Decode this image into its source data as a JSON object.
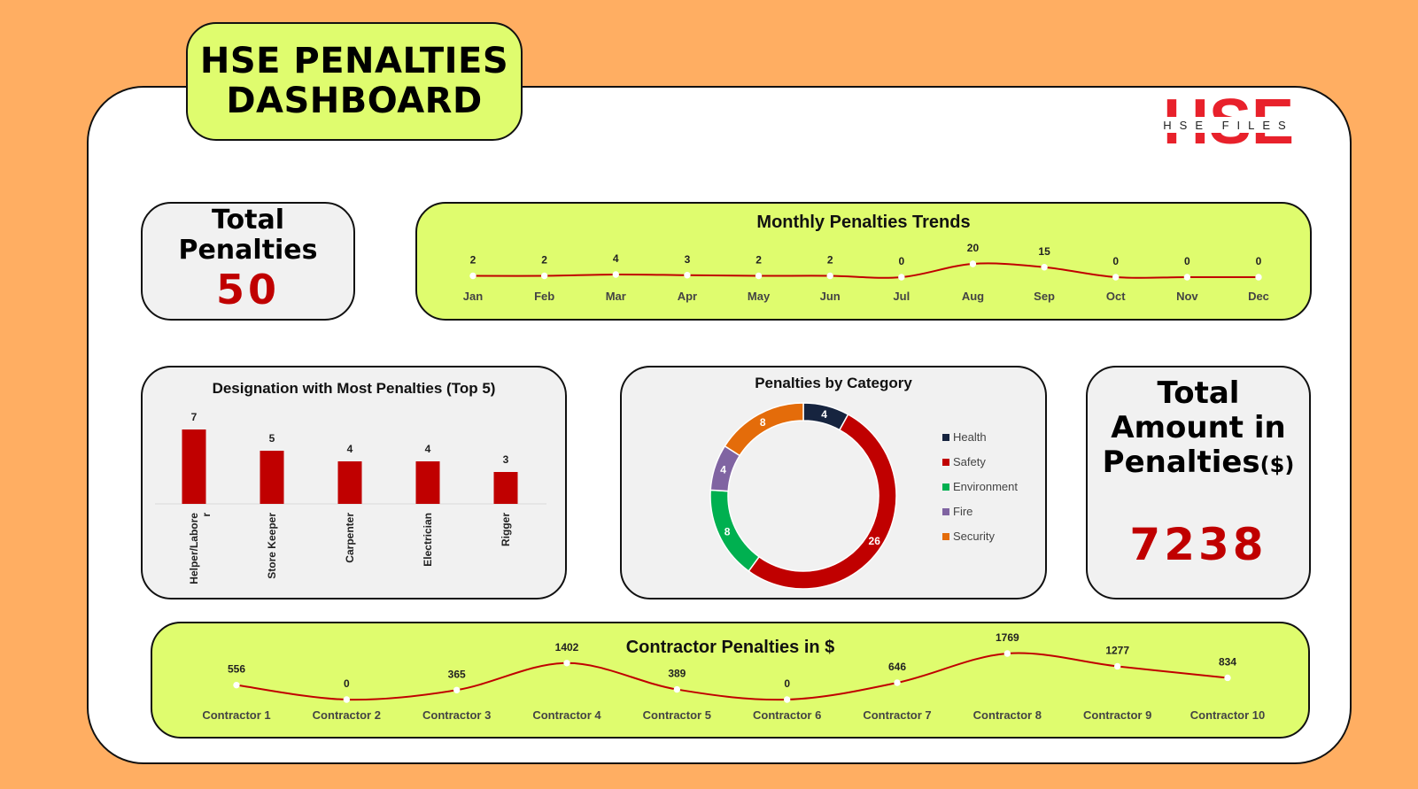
{
  "dashboard": {
    "title": "HSE PENALTIES\nDASHBOARD",
    "logo": {
      "main": "HSE",
      "sub": "HSE FILES"
    }
  },
  "total_penalties": {
    "label": "Total\nPenalties",
    "value": "50"
  },
  "total_amount": {
    "label": "Total\nAmount in\nPenalties",
    "unit": "($)",
    "value": "7238"
  },
  "colors": {
    "background": "#FFAE62",
    "panel_lime": "#DFFC6E",
    "accent_red": "#C00000",
    "health": "#16243F",
    "safety": "#C00000",
    "environment": "#00B050",
    "fire": "#8064A2",
    "security": "#E46C0A"
  },
  "chart_data": [
    {
      "id": "monthly",
      "type": "line",
      "title": "Monthly Penalties Trends",
      "categories": [
        "Jan",
        "Feb",
        "Mar",
        "Apr",
        "May",
        "Jun",
        "Jul",
        "Aug",
        "Sep",
        "Oct",
        "Nov",
        "Dec"
      ],
      "values": [
        2,
        2,
        4,
        3,
        2,
        2,
        0,
        20,
        15,
        0,
        0,
        0
      ],
      "ylim": [
        0,
        200
      ]
    },
    {
      "id": "designation",
      "type": "bar",
      "title": "Designation with Most Penalties (Top 5)",
      "categories": [
        "Helper/Labore\nr",
        "Store Keeper",
        "Carpenter",
        "Electrician",
        "Rigger"
      ],
      "values": [
        7,
        5,
        4,
        4,
        3
      ],
      "ylim": [
        0,
        8
      ]
    },
    {
      "id": "category",
      "type": "pie",
      "title": "Penalties by Category",
      "labels": [
        "Health",
        "Safety",
        "Environment",
        "Fire",
        "Security"
      ],
      "values": [
        4,
        26,
        8,
        4,
        8
      ],
      "colors": [
        "#16243F",
        "#C00000",
        "#00B050",
        "#8064A2",
        "#E46C0A"
      ],
      "legend": "right"
    },
    {
      "id": "contractor",
      "type": "line",
      "title": "Contractor Penalties in $",
      "categories": [
        "Contractor 1",
        "Contractor 2",
        "Contractor 3",
        "Contractor 4",
        "Contractor 5",
        "Contractor 6",
        "Contractor 7",
        "Contractor 8",
        "Contractor 9",
        "Contractor 10"
      ],
      "values": [
        556,
        0,
        365,
        1402,
        389,
        0,
        646,
        1769,
        1277,
        834
      ],
      "ylim": [
        0,
        1769
      ]
    }
  ]
}
